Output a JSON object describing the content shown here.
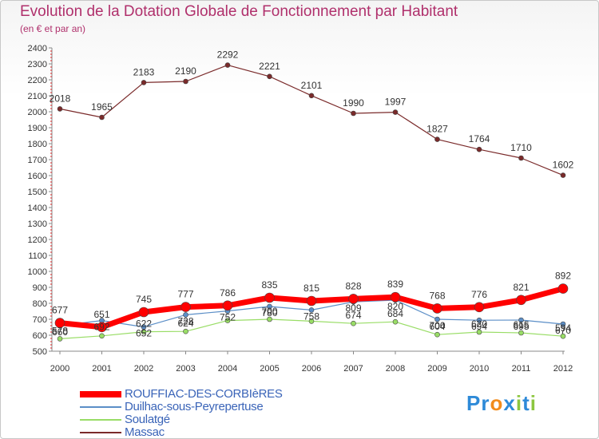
{
  "header": {
    "title": "Evolution de la Dotation Globale de Fonctionnement par Habitant",
    "subtitle": "(en € et par an)"
  },
  "logo": {
    "text": "Proxiti",
    "letters": [
      {
        "ch": "P",
        "color": "#2e8ad8"
      },
      {
        "ch": "r",
        "color": "#2e8ad8"
      },
      {
        "ch": "o",
        "color": "#f28c1c"
      },
      {
        "ch": "x",
        "color": "#2e8ad8"
      },
      {
        "ch": "i",
        "color": "#8cc63f"
      },
      {
        "ch": "t",
        "color": "#2e8ad8"
      },
      {
        "ch": "i",
        "color": "#8cc63f"
      }
    ]
  },
  "chart_data": {
    "type": "line",
    "title": "Evolution de la Dotation Globale de Fonctionnement par Habitant",
    "subtitle": "(en € et par an)",
    "xlabel": "",
    "ylabel": "",
    "x": [
      "2000",
      "2001",
      "2002",
      "2003",
      "2004",
      "2005",
      "2006",
      "2007",
      "2008",
      "2009",
      "2010",
      "2011",
      "2012"
    ],
    "ylim": [
      500,
      2400
    ],
    "yticks": [
      "500",
      "600",
      "700",
      "800",
      "900",
      "1000",
      "1100",
      "1200",
      "1300",
      "1400",
      "1500",
      "1600",
      "1700",
      "1800",
      "1900",
      "2000",
      "2100",
      "2200",
      "2300",
      "2400"
    ],
    "grid": false,
    "legend": "bottom-left",
    "series": [
      {
        "name": "Massac",
        "color": "#7a2a2a",
        "values": [
          2018,
          1965,
          2183,
          2190,
          2292,
          2221,
          2101,
          1990,
          1997,
          1827,
          1764,
          1710,
          1602
        ],
        "labels": [
          "2018",
          "1965",
          "2183",
          "2190",
          "2292",
          "2221",
          "2101",
          "1990",
          "1997",
          "1827",
          "1764",
          "1710",
          "1602"
        ]
      },
      {
        "name": "Soulatgé",
        "color": "#99dd66",
        "values": [
          578,
          596,
          622,
          624,
          692,
          700,
          688,
          674,
          684,
          604,
          620,
          615,
          594
        ],
        "labels": [
          "578",
          "",
          "622",
          "624",
          "",
          "700",
          "",
          "674",
          "684",
          "604",
          "620",
          "615",
          "594"
        ]
      },
      {
        "name": "Duilhac-sous-Peyrepertuse",
        "color": "#5b8ec7",
        "values": [
          660,
          692,
          652,
          728,
          752,
          780,
          758,
          809,
          820,
          700,
          694,
          695,
          670
        ],
        "labels": [
          "660",
          "692",
          "652",
          "728",
          "752",
          "780",
          "758",
          "809",
          "820",
          "700",
          "694",
          "695",
          "670"
        ]
      },
      {
        "name": "ROUFFIAC-DES-CORBIèRES",
        "color": "#ff0000",
        "values": [
          677,
          651,
          745,
          777,
          786,
          835,
          815,
          828,
          839,
          768,
          776,
          821,
          892
        ],
        "labels": [
          "677",
          "651",
          "745",
          "777",
          "786",
          "835",
          "815",
          "828",
          "839",
          "768",
          "776",
          "821",
          "892"
        ]
      }
    ]
  },
  "legend_items": [
    {
      "label": "ROUFFIAC-DES-CORBIèRES",
      "color": "#ff0000",
      "thickness": 8,
      "label_color": "#3a64b8"
    },
    {
      "label": "Duilhac-sous-Peyrepertuse",
      "color": "#5b8ec7",
      "thickness": 2,
      "label_color": "#3a64b8"
    },
    {
      "label": "Soulatgé",
      "color": "#99dd66",
      "thickness": 2,
      "label_color": "#3a64b8"
    },
    {
      "label": "Massac",
      "color": "#7a2a2a",
      "thickness": 2,
      "label_color": "#3a64b8"
    }
  ]
}
